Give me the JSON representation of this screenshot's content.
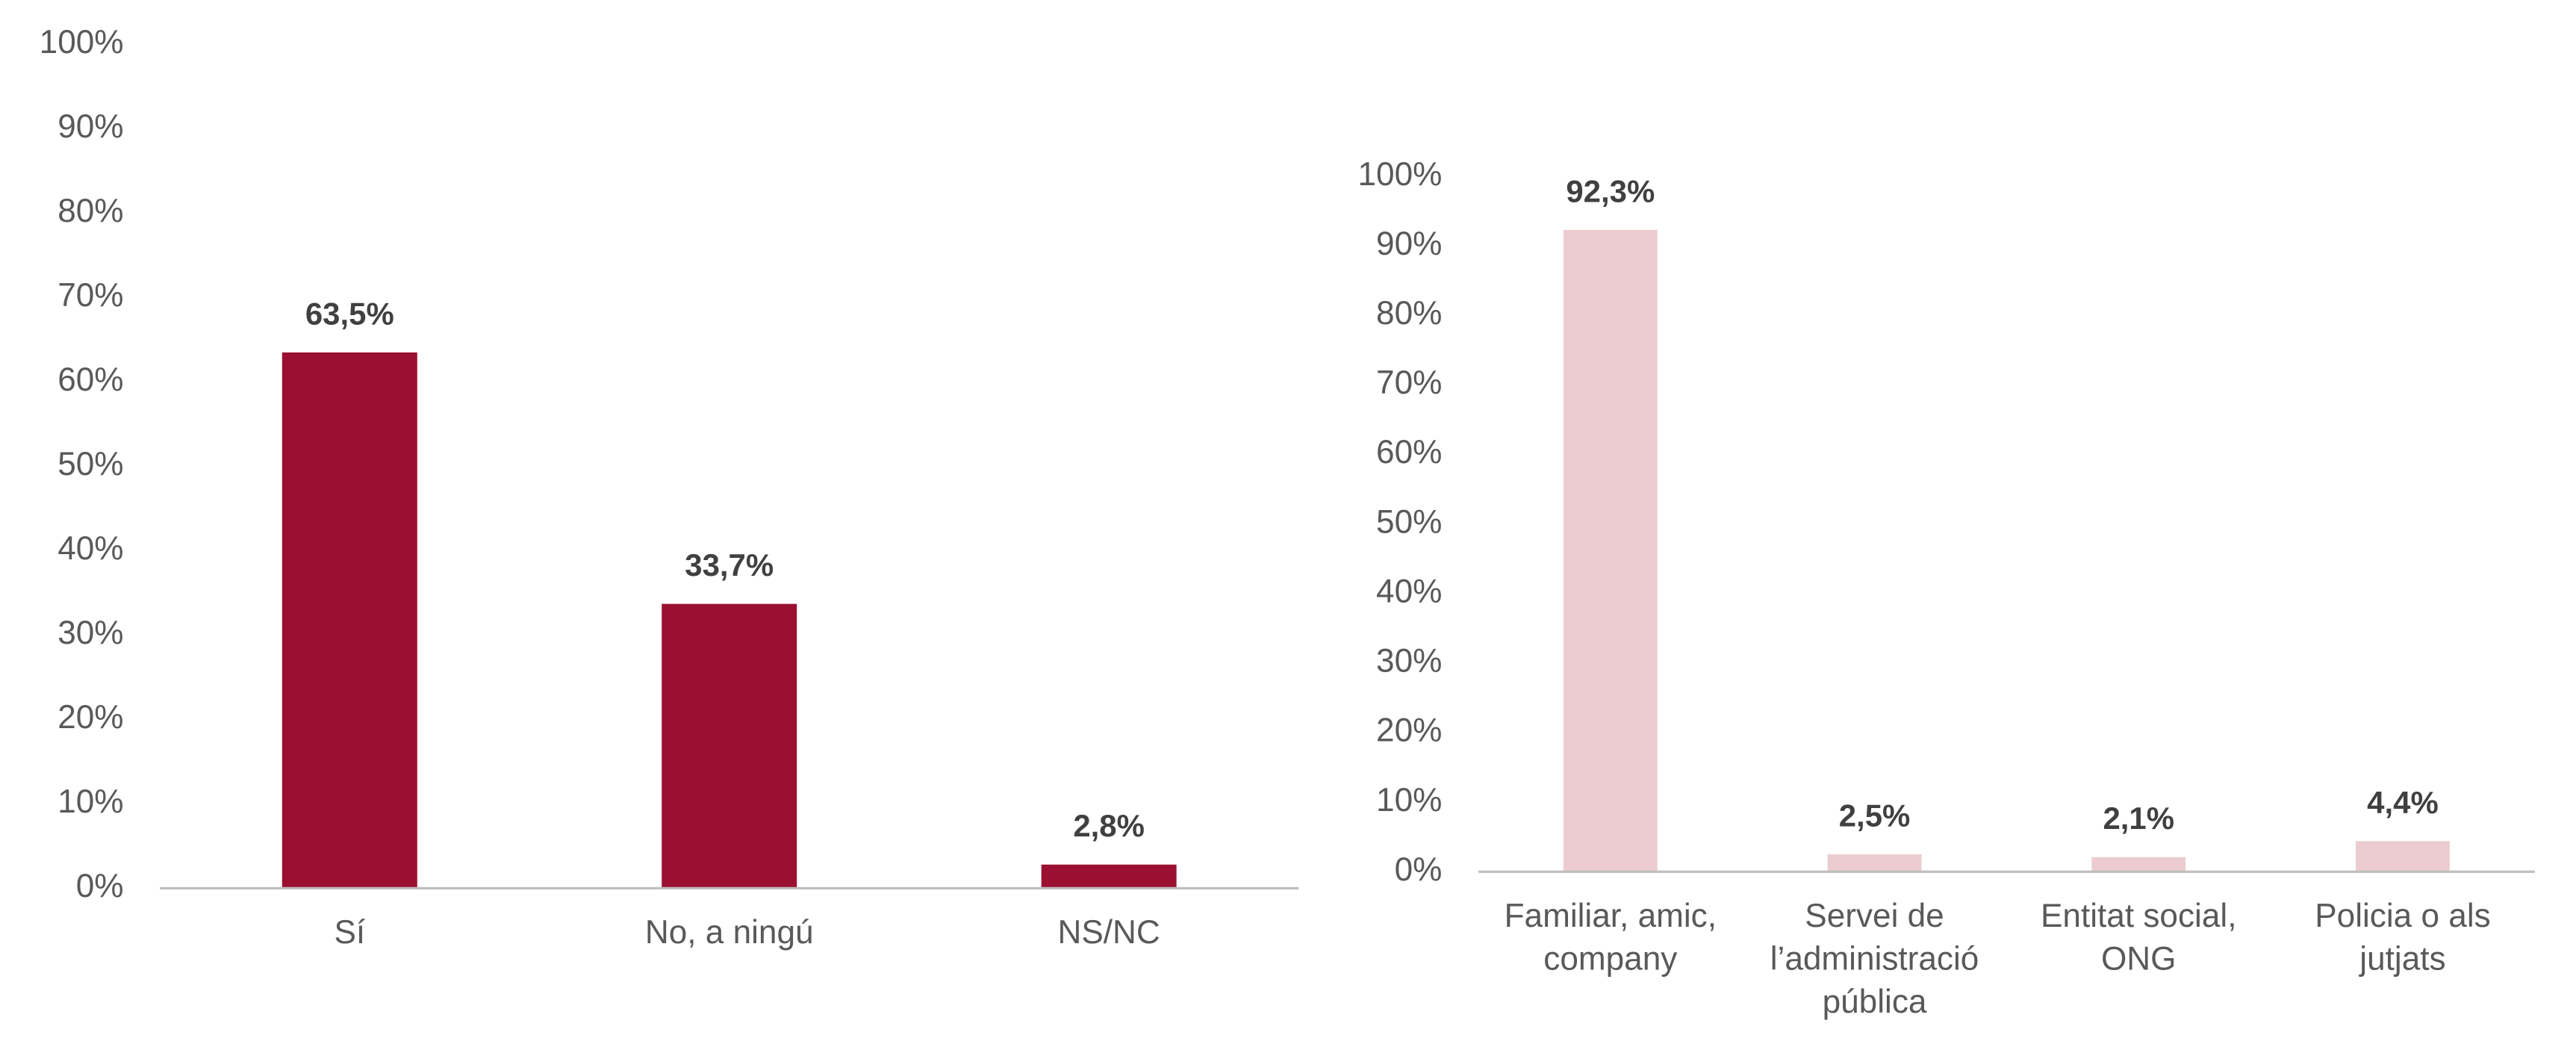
{
  "chart_data": [
    {
      "type": "bar",
      "categories": [
        "Sí",
        "No, a ningú",
        "NS/NC"
      ],
      "values": [
        63.5,
        33.7,
        2.8
      ],
      "value_labels": [
        "63,5%",
        "33,7%",
        "2,8%"
      ],
      "color": "#9b1030",
      "ylim": [
        0,
        100
      ],
      "yticks": [
        {
          "value": 0,
          "label": "0%"
        },
        {
          "value": 10,
          "label": "10%"
        },
        {
          "value": 20,
          "label": "20%"
        },
        {
          "value": 30,
          "label": "30%"
        },
        {
          "value": 40,
          "label": "40%"
        },
        {
          "value": 50,
          "label": "50%"
        },
        {
          "value": 60,
          "label": "60%"
        },
        {
          "value": 70,
          "label": "70%"
        },
        {
          "value": 80,
          "label": "80%"
        },
        {
          "value": 90,
          "label": "90%"
        },
        {
          "value": 100,
          "label": "100%"
        }
      ],
      "grid": false
    },
    {
      "type": "bar",
      "categories": [
        "Familiar, amic, company",
        "Servei de l’administració pública",
        "Entitat social, ONG",
        "Policia o als jutjats"
      ],
      "values": [
        92.3,
        2.5,
        2.1,
        4.4
      ],
      "value_labels": [
        "92,3%",
        "2,5%",
        "2,1%",
        "4,4%"
      ],
      "color": "#ecccce",
      "ylim": [
        0,
        100
      ],
      "yticks": [
        {
          "value": 0,
          "label": "0%"
        },
        {
          "value": 10,
          "label": "10%"
        },
        {
          "value": 20,
          "label": "20%"
        },
        {
          "value": 30,
          "label": "30%"
        },
        {
          "value": 40,
          "label": "40%"
        },
        {
          "value": 50,
          "label": "50%"
        },
        {
          "value": 60,
          "label": "60%"
        },
        {
          "value": 70,
          "label": "70%"
        },
        {
          "value": 80,
          "label": "80%"
        },
        {
          "value": 90,
          "label": "90%"
        },
        {
          "value": 100,
          "label": "100%"
        }
      ],
      "grid": false
    }
  ]
}
